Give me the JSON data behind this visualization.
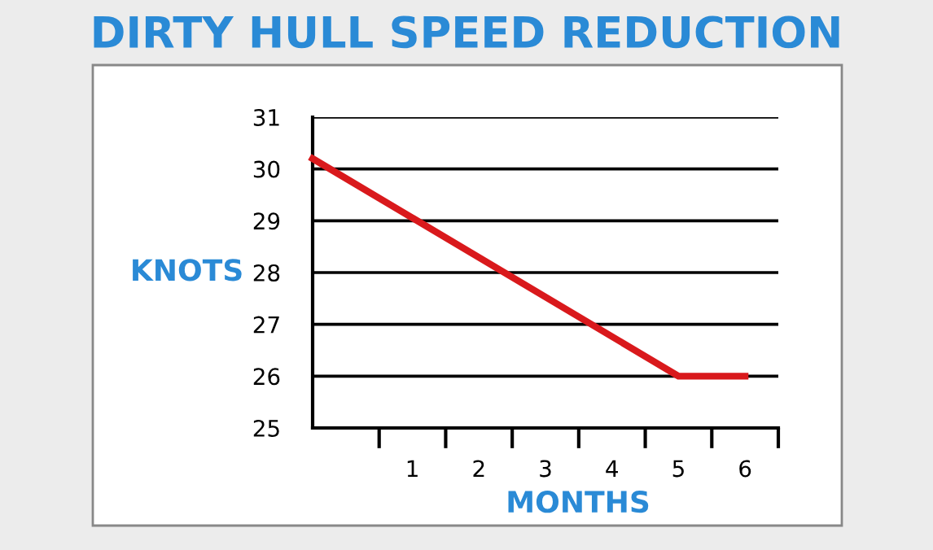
{
  "chart_data": {
    "type": "line",
    "title": "DIRTY HULL SPEED REDUCTION",
    "xlabel": "MONTHS",
    "ylabel": "KNOTS",
    "x": [
      -0.5,
      5,
      6
    ],
    "series": [
      {
        "color": "#d9191c",
        "values": [
          30.2,
          26,
          26
        ]
      }
    ],
    "xlim": [
      -0.5,
      6.5
    ],
    "xticks": [
      {
        "value": 1,
        "label": "1"
      },
      {
        "value": 2,
        "label": "2"
      },
      {
        "value": 3,
        "label": "3"
      },
      {
        "value": 4,
        "label": "4"
      },
      {
        "value": 5,
        "label": "5"
      },
      {
        "value": 6,
        "label": "6"
      },
      {
        "value": 0.5,
        "label": null
      },
      {
        "value": 1.5,
        "label": null
      },
      {
        "value": 2.5,
        "label": null
      },
      {
        "value": 3.5,
        "label": null
      },
      {
        "value": 4.5,
        "label": null
      },
      {
        "value": 5.5,
        "label": null
      },
      {
        "value": 6.5,
        "label": null
      }
    ],
    "ylim": [
      25,
      31
    ],
    "yticks": [
      25,
      26,
      27,
      28,
      29,
      30,
      31
    ],
    "grid": "y",
    "marker": "none",
    "line_style": "solid",
    "legend": false
  }
}
